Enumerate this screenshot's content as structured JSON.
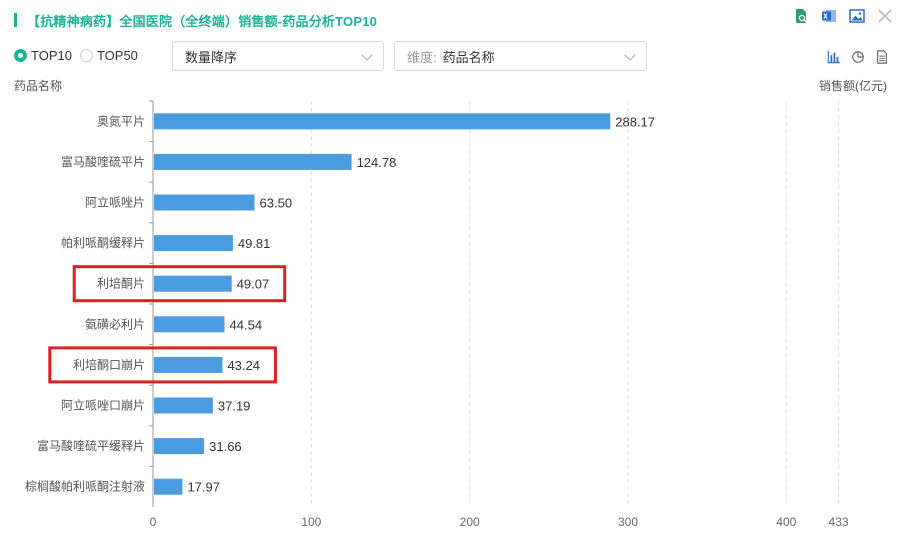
{
  "header": {
    "title": "【抗精神病药】全国医院（全终端）销售额-药品分析TOP10",
    "accent_color": "#1fb39a",
    "toolbar_icons": [
      "export-excel-search-icon",
      "excel-icon",
      "image-icon",
      "close-icon"
    ]
  },
  "controls": {
    "radios": [
      {
        "label": "TOP10",
        "checked": true
      },
      {
        "label": "TOP50",
        "checked": false
      }
    ],
    "sort_select": {
      "value": "数量降序"
    },
    "dimension_select": {
      "prefix": "维度:",
      "value": "药品名称"
    },
    "view_icons": [
      "bar-chart-icon",
      "pie-chart-icon",
      "table-icon"
    ]
  },
  "chart_data": {
    "type": "bar",
    "orientation": "horizontal",
    "ylabel": "药品名称",
    "xlabel": "销售额(亿元)",
    "categories": [
      "奥氮平片",
      "富马酸喹硫平片",
      "阿立哌唑片",
      "帕利哌酮缓释片",
      "利培酮片",
      "氨磺必利片",
      "利培酮口崩片",
      "阿立哌唑口崩片",
      "富马酸喹硫平缓释片",
      "棕榈酸帕利哌酮注射液"
    ],
    "values": [
      288.17,
      124.78,
      63.5,
      49.81,
      49.07,
      44.54,
      43.24,
      37.19,
      31.66,
      17.97
    ],
    "value_labels": [
      "288.17",
      "124.78",
      "63.50",
      "49.81",
      "49.07",
      "44.54",
      "43.24",
      "37.19",
      "31.66",
      "17.97"
    ],
    "xticks": [
      0,
      100,
      200,
      300,
      400,
      433
    ],
    "xtick_labels": [
      "0",
      "100",
      "200",
      "300",
      "400",
      "433"
    ],
    "xlim": [
      0,
      433
    ],
    "bar_color": "#4a9be0",
    "highlighted": [
      "利培酮片",
      "利培酮口崩片"
    ],
    "highlight_color": "#e02020",
    "grid": "vertical-dashed"
  }
}
